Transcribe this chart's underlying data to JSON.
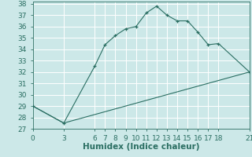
{
  "title": "",
  "xlabel": "Humidex (Indice chaleur)",
  "bg_color": "#cce8e8",
  "grid_color": "#ffffff",
  "line_color": "#2a6e62",
  "line1_x": [
    0,
    3,
    6,
    7,
    8,
    9,
    10,
    11,
    12,
    13,
    14,
    15,
    16,
    17,
    18,
    21
  ],
  "line1_y": [
    29.0,
    27.5,
    32.5,
    34.4,
    35.2,
    35.8,
    36.0,
    37.2,
    37.8,
    37.0,
    36.5,
    36.5,
    35.5,
    34.4,
    34.5,
    32.0
  ],
  "line2_x": [
    0,
    3,
    21
  ],
  "line2_y": [
    29.0,
    27.5,
    32.0
  ],
  "xlim": [
    0,
    21
  ],
  "ylim": [
    27,
    38.2
  ],
  "yticks": [
    27,
    28,
    29,
    30,
    31,
    32,
    33,
    34,
    35,
    36,
    37,
    38
  ],
  "xticks": [
    0,
    3,
    6,
    7,
    8,
    9,
    10,
    11,
    12,
    13,
    14,
    15,
    16,
    17,
    18,
    21
  ],
  "tick_fontsize": 6.5,
  "xlabel_fontsize": 7.5
}
